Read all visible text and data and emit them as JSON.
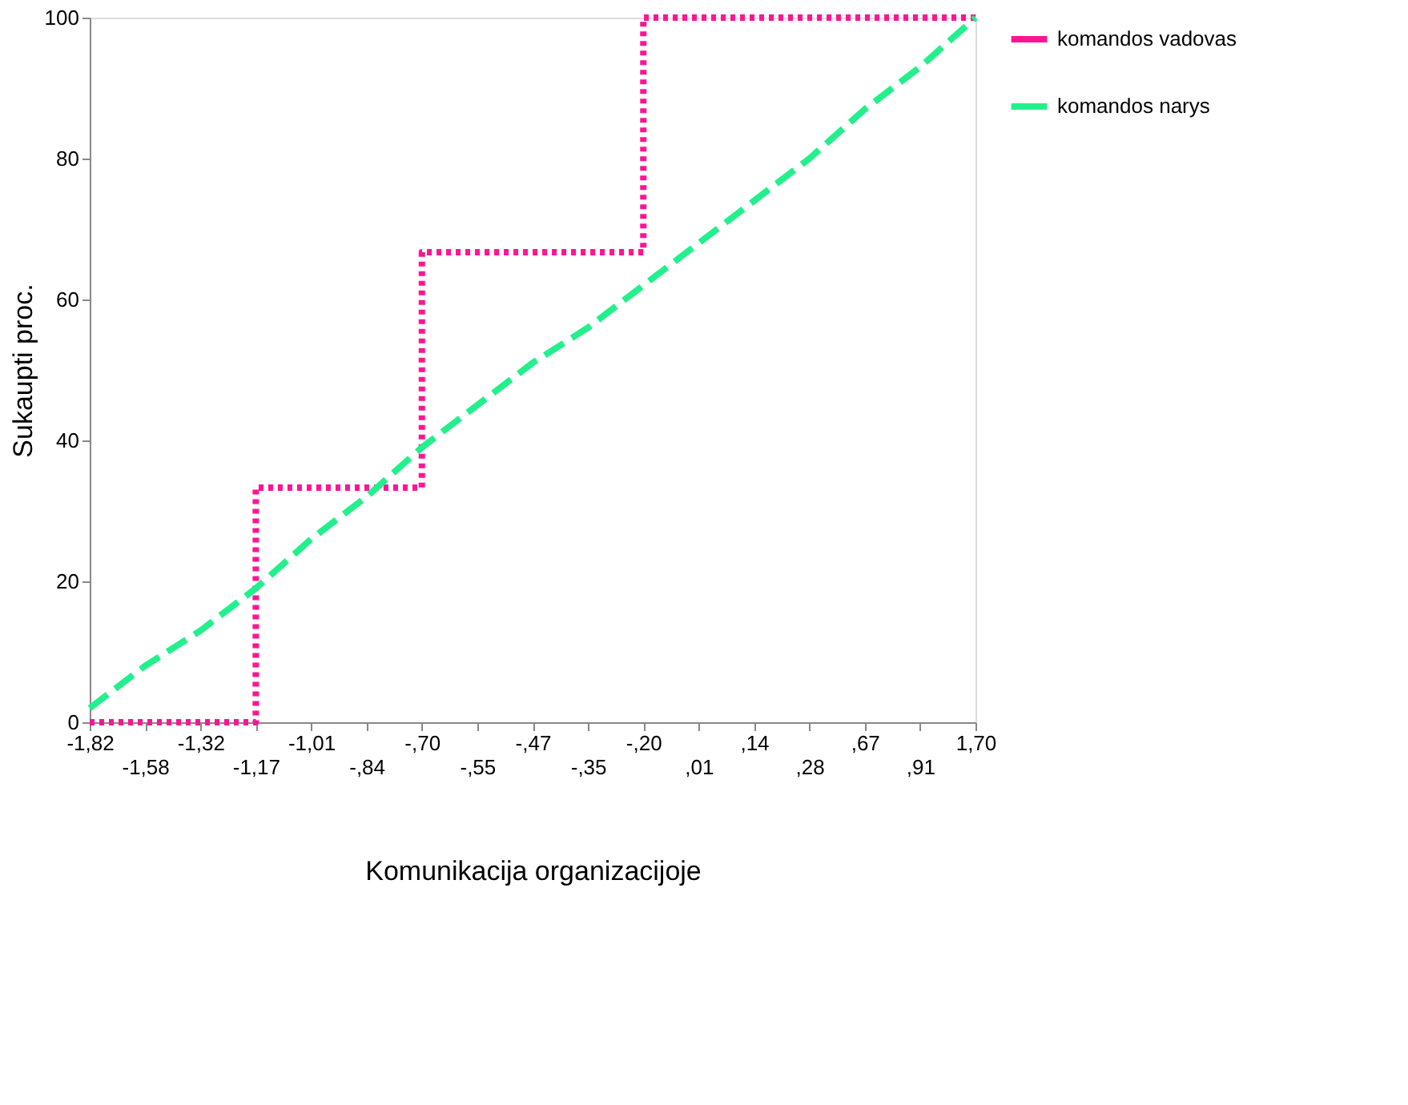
{
  "chart_data": {
    "type": "step",
    "xlabel": "Komunikacija organizacijoje",
    "ylabel": "Sukaupti proc.",
    "categories": [
      "-1,82",
      "-1,58",
      "-1,32",
      "-1,17",
      "-1,01",
      "-,84",
      "-,70",
      "-,55",
      "-,47",
      "-,35",
      "-,20",
      ",01",
      ",14",
      ",28",
      ",67",
      ",91",
      "1,70"
    ],
    "series": [
      {
        "name": "komandos vadovas",
        "color": "#ff1493",
        "line_style": "dotted",
        "values": [
          0,
          0,
          0,
          33.3,
          33.3,
          33.3,
          66.7,
          66.7,
          66.7,
          66.7,
          100,
          100,
          100,
          100,
          100,
          100,
          100
        ]
      },
      {
        "name": "komandos narys",
        "color": "#22f08c",
        "line_style": "dashed",
        "type": "line",
        "values": [
          2,
          8,
          13,
          19,
          26,
          32,
          39,
          45,
          51,
          56,
          62,
          68,
          74,
          80,
          87,
          93,
          100
        ]
      }
    ],
    "ylim": [
      0,
      100
    ],
    "yticks": [
      0,
      20,
      40,
      60,
      80,
      100
    ],
    "grid": false,
    "legend": "right"
  }
}
